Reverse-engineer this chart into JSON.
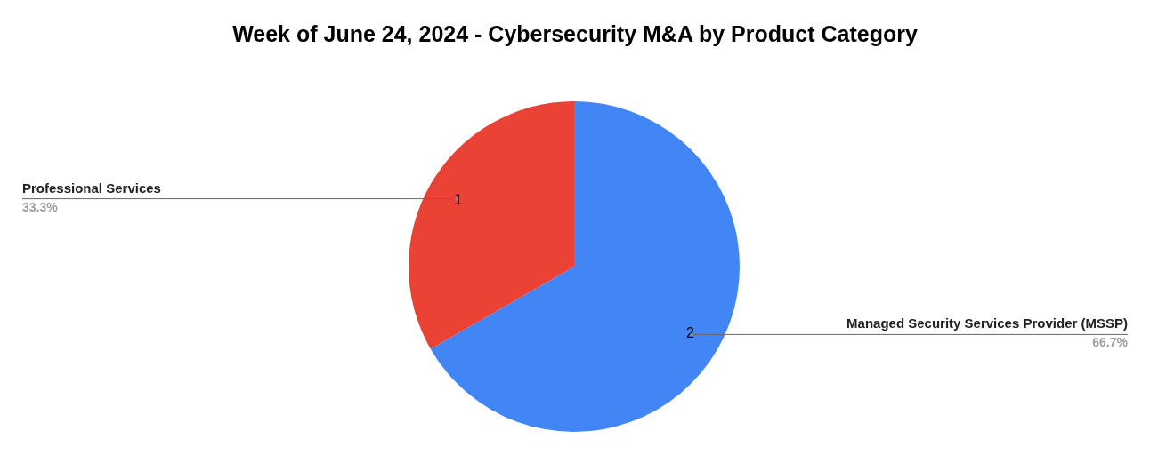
{
  "chart_data": {
    "type": "pie",
    "title": "Week of June 24, 2024 - Cybersecurity M&A by Product Category",
    "categories": [
      "Managed Security Services Provider (MSSP)",
      "Professional Services"
    ],
    "values": [
      66.7,
      33.3
    ],
    "colors": [
      "#4285f4",
      "#ea4335"
    ],
    "value_labels": [
      "66.7%",
      "33.3%"
    ],
    "annotations": [
      {
        "text": "2",
        "x": "Managed Security Services Provider (MSSP)"
      },
      {
        "text": "1",
        "x": "Professional Services"
      }
    ]
  }
}
